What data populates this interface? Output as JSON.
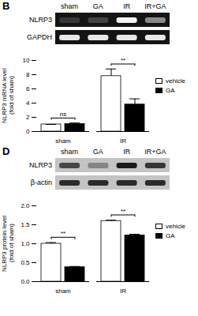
{
  "chart_data": [
    {
      "type": "bar",
      "title": "B",
      "blot": {
        "lanes": [
          "sham",
          "GA",
          "IR",
          "IR+GA"
        ],
        "rows": [
          {
            "name": "NLRP3",
            "intensity": [
              0.15,
              0.2,
              0.95,
              0.5
            ]
          },
          {
            "name": "GAPDH",
            "intensity": [
              0.9,
              0.9,
              0.9,
              0.9
            ]
          }
        ]
      },
      "ylabel": [
        "NLRP3 mRNA level",
        "(fold of sham)"
      ],
      "categories": [
        "sham",
        "IR"
      ],
      "series": [
        {
          "name": "vehicle",
          "color": "#ffffff",
          "values": [
            1.0,
            7.8
          ],
          "errors": [
            0,
            1.0
          ]
        },
        {
          "name": "GA",
          "color": "#000000",
          "values": [
            1.05,
            3.8
          ],
          "errors": [
            0.15,
            0.8
          ]
        }
      ],
      "ylim": [
        0,
        10
      ],
      "yticks": [
        0,
        2,
        4,
        6,
        8,
        10
      ],
      "legend": "right",
      "annotations": [
        {
          "text": "ns",
          "category": "sham"
        },
        {
          "text": "**",
          "category": "IR"
        }
      ]
    },
    {
      "type": "bar",
      "title": "D",
      "blot": {
        "lanes": [
          "sham",
          "GA",
          "IR",
          "IR+GA"
        ],
        "rows": [
          {
            "name": "NLRP3",
            "intensity": [
              0.7,
              0.35,
              0.95,
              0.8
            ]
          },
          {
            "name": "β-actin",
            "intensity": [
              0.85,
              0.85,
              0.85,
              0.85
            ]
          }
        ]
      },
      "ylabel": [
        "NLRP3 protein level",
        "(fold of sham)"
      ],
      "categories": [
        "sham",
        "IR"
      ],
      "series": [
        {
          "name": "vehicle",
          "color": "#ffffff",
          "values": [
            1.0,
            1.6
          ],
          "errors": [
            0.03,
            0.02
          ]
        },
        {
          "name": "GA",
          "color": "#000000",
          "values": [
            0.38,
            1.22
          ],
          "errors": [
            0.02,
            0.03
          ]
        }
      ],
      "ylim": [
        0,
        2.0
      ],
      "yticks": [
        {
          "value": 0,
          "label": "0.0"
        },
        {
          "value": 0.5,
          "label": "0.5"
        },
        {
          "value": 1.0,
          "label": "1.0"
        },
        {
          "value": 1.5,
          "label": "1.5"
        },
        {
          "value": 2.0,
          "label": "2.0"
        }
      ],
      "legend": "right",
      "annotations": [
        {
          "text": "**",
          "category": "sham"
        },
        {
          "text": "**",
          "category": "IR"
        }
      ]
    }
  ]
}
